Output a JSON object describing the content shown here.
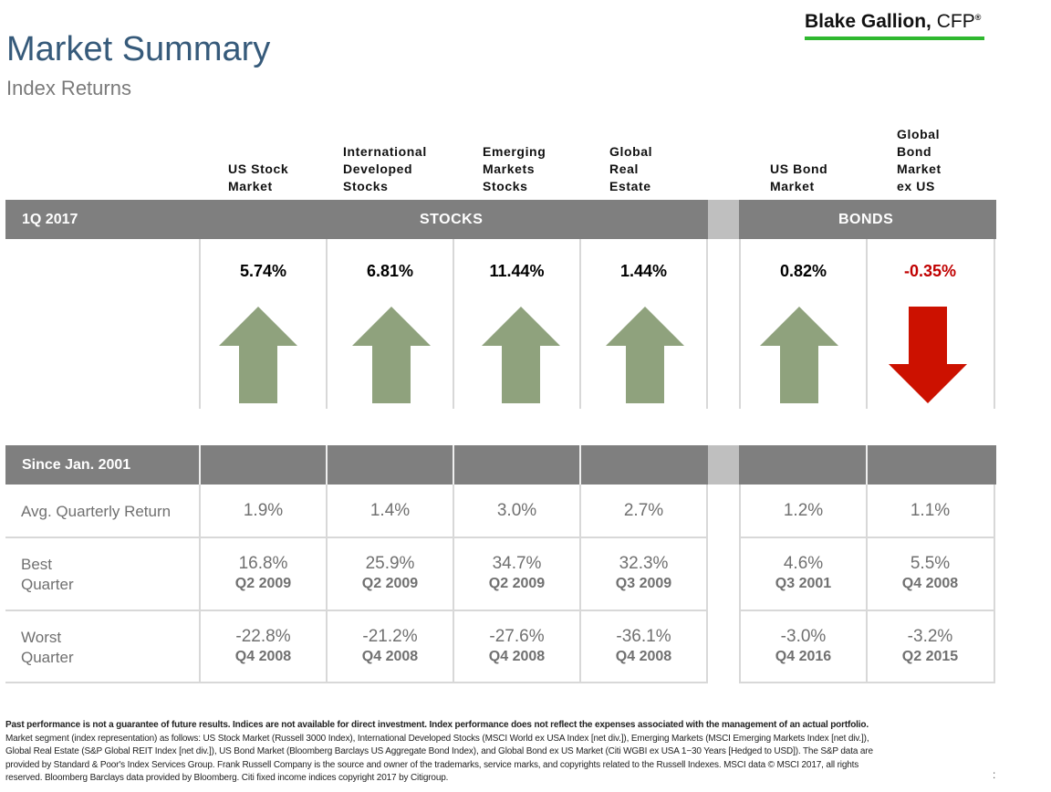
{
  "header": {
    "title": "Market Summary",
    "subtitle": "Index Returns",
    "logo_name": "Blake Gallion,",
    "logo_suffix": "CFP",
    "logo_reg": "®",
    "logo_underline_color": "#2fb82f"
  },
  "columns": [
    {
      "label": [
        "US Stock",
        "Market"
      ]
    },
    {
      "label": [
        "International",
        "Developed",
        "Stocks"
      ]
    },
    {
      "label": [
        "Emerging",
        "Markets",
        "Stocks"
      ]
    },
    {
      "label": [
        "Global",
        "Real",
        "Estate"
      ]
    },
    {
      "label": [
        "US Bond",
        "Market"
      ]
    },
    {
      "label": [
        "Global",
        "Bond",
        "Market",
        "ex US"
      ]
    }
  ],
  "quarter_band": {
    "period": "1Q 2017",
    "stocks": "STOCKS",
    "bonds": "BONDS"
  },
  "returns": [
    {
      "value": "5.74%",
      "direction": "up"
    },
    {
      "value": "6.81%",
      "direction": "up"
    },
    {
      "value": "11.44%",
      "direction": "up"
    },
    {
      "value": "1.44%",
      "direction": "up"
    },
    {
      "value": "0.82%",
      "direction": "up"
    },
    {
      "value": "-0.35%",
      "direction": "down"
    }
  ],
  "colors": {
    "up_arrow": "#8fa27d",
    "down_arrow": "#cc1100",
    "negative_text": "#c00000",
    "band": "#7f7f7f",
    "title": "#365a7a"
  },
  "since_band": {
    "label": "Since Jan. 2001"
  },
  "stats": {
    "avg": {
      "label": "Avg. Quarterly Return",
      "values": [
        "1.9%",
        "1.4%",
        "3.0%",
        "2.7%",
        "1.2%",
        "1.1%"
      ]
    },
    "best": {
      "label": [
        "Best",
        "Quarter"
      ],
      "values": [
        "16.8%",
        "25.9%",
        "34.7%",
        "32.3%",
        "4.6%",
        "5.5%"
      ],
      "quarters": [
        "Q2 2009",
        "Q2 2009",
        "Q2 2009",
        "Q3 2009",
        "Q3 2001",
        "Q4 2008"
      ]
    },
    "worst": {
      "label": [
        "Worst",
        "Quarter"
      ],
      "values": [
        "-22.8%",
        "-21.2%",
        "-27.6%",
        "-36.1%",
        "-3.0%",
        "-3.2%"
      ],
      "quarters": [
        "Q4 2008",
        "Q4 2008",
        "Q4 2008",
        "Q4 2008",
        "Q4 2016",
        "Q2 2015"
      ]
    }
  },
  "disclaimer": {
    "bold": "Past performance is not a guarantee of future results. Indices are not available for direct investment. Index performance does not reflect the expenses associated with the management of an actual portfolio.",
    "lines": [
      "Market segment (index representation) as follows: US Stock Market (Russell 3000 Index), International Developed Stocks (MSCI World ex USA Index [net div.]), Emerging Markets (MSCI Emerging Markets Index [net div.]),",
      "Global Real Estate (S&P Global REIT Index [net div.]), US Bond Market (Bloomberg Barclays US Aggregate Bond Index), and Global Bond ex US Market (Citi WGBI ex USA 1−30 Years [Hedged to USD]). The S&P data are",
      "provided by Standard & Poor's Index Services Group. Frank Russell Company is the source and owner of the trademarks, service marks, and copyrights related to the Russell Indexes. MSCI data © MSCI 2017, all rights",
      "reserved. Bloomberg Barclays data provided by Bloomberg. Citi fixed income indices copyright 2017 by Citigroup."
    ]
  },
  "page_marker": ":"
}
